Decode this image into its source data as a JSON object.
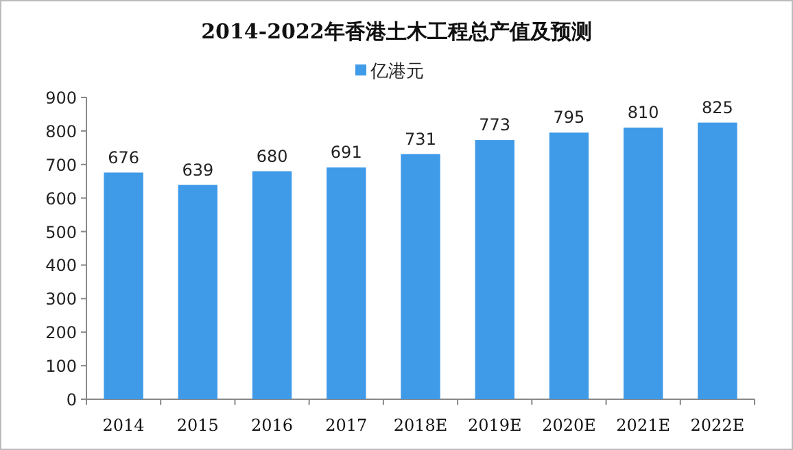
{
  "chart_data": {
    "type": "bar",
    "title": "2014-2022年香港土木工程总产值及预测",
    "categories": [
      "2014",
      "2015",
      "2016",
      "2017",
      "2018E",
      "2019E",
      "2020E",
      "2021E",
      "2022E"
    ],
    "series": [
      {
        "name": "亿港元",
        "color": "#3f9ae8",
        "values": [
          676,
          639,
          680,
          691,
          731,
          773,
          795,
          810,
          825
        ]
      }
    ],
    "ylim": [
      0,
      900
    ],
    "yticks": [
      0,
      100,
      200,
      300,
      400,
      500,
      600,
      700,
      800,
      900
    ],
    "data_labels": true,
    "legend": "top",
    "grid": false
  }
}
